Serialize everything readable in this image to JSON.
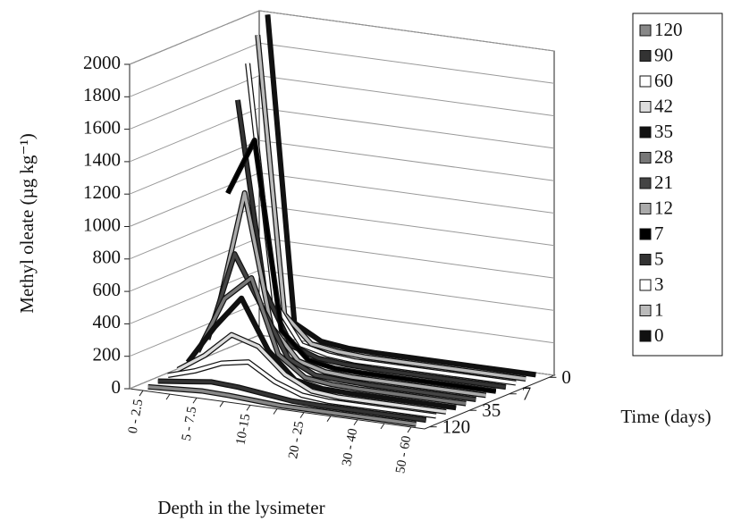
{
  "chart_data": {
    "type": "ribbon3d",
    "y_label": "Methyl oleate (µg kg⁻¹)",
    "x_label": "Depth in the lysimeter",
    "z_label": "Time (days)",
    "categories": [
      "0 - 2.5",
      null,
      "5 - 7.5",
      null,
      "10-15",
      null,
      "20 - 25",
      null,
      "30 - 40",
      null,
      "50 - 60"
    ],
    "series": [
      {
        "name": "0",
        "color": "#111111",
        "values": [
          2000,
          120,
          30,
          10,
          5,
          5,
          5,
          5,
          5,
          5,
          5
        ]
      },
      {
        "name": "1",
        "color": "#bbbbbb",
        "values": [
          1900,
          200,
          40,
          15,
          5,
          5,
          5,
          5,
          5,
          5,
          5
        ]
      },
      {
        "name": "3",
        "color": "#ffffff",
        "values": [
          1750,
          300,
          60,
          20,
          5,
          5,
          5,
          5,
          5,
          5,
          5
        ]
      },
      {
        "name": "5",
        "color": "#333333",
        "values": [
          1550,
          400,
          80,
          25,
          10,
          5,
          5,
          5,
          5,
          5,
          5
        ]
      },
      {
        "name": "7",
        "color": "#000000",
        "values": [
          1000,
          1350,
          200,
          40,
          10,
          5,
          5,
          5,
          5,
          5,
          5
        ]
      },
      {
        "name": "12",
        "color": "#aaaaaa",
        "values": [
          300,
          1050,
          250,
          60,
          15,
          5,
          5,
          5,
          5,
          5,
          5
        ]
      },
      {
        "name": "21",
        "color": "#444444",
        "values": [
          150,
          700,
          400,
          100,
          20,
          10,
          5,
          5,
          5,
          5,
          5
        ]
      },
      {
        "name": "28",
        "color": "#777777",
        "values": [
          100,
          450,
          600,
          150,
          30,
          10,
          5,
          5,
          5,
          5,
          5
        ]
      },
      {
        "name": "35",
        "color": "#111111",
        "values": [
          60,
          300,
          500,
          200,
          40,
          10,
          5,
          5,
          5,
          5,
          5
        ]
      },
      {
        "name": "42",
        "color": "#dddddd",
        "values": [
          40,
          150,
          300,
          250,
          100,
          20,
          5,
          5,
          5,
          5,
          5
        ]
      },
      {
        "name": "60",
        "color": "#ffffff",
        "values": [
          30,
          80,
          150,
          180,
          80,
          20,
          5,
          5,
          5,
          5,
          5
        ]
      },
      {
        "name": "90",
        "color": "#333333",
        "values": [
          20,
          40,
          60,
          50,
          30,
          10,
          5,
          5,
          5,
          5,
          5
        ]
      },
      {
        "name": "120",
        "color": "#888888",
        "values": [
          10,
          20,
          30,
          25,
          15,
          5,
          5,
          5,
          5,
          5,
          5
        ]
      }
    ],
    "z_ticks": [
      0,
      4,
      8,
      12
    ],
    "ylim": [
      0,
      2000
    ],
    "yticks": [
      0,
      200,
      400,
      600,
      800,
      1000,
      1200,
      1400,
      1600,
      1800,
      2000
    ],
    "grid": true
  }
}
